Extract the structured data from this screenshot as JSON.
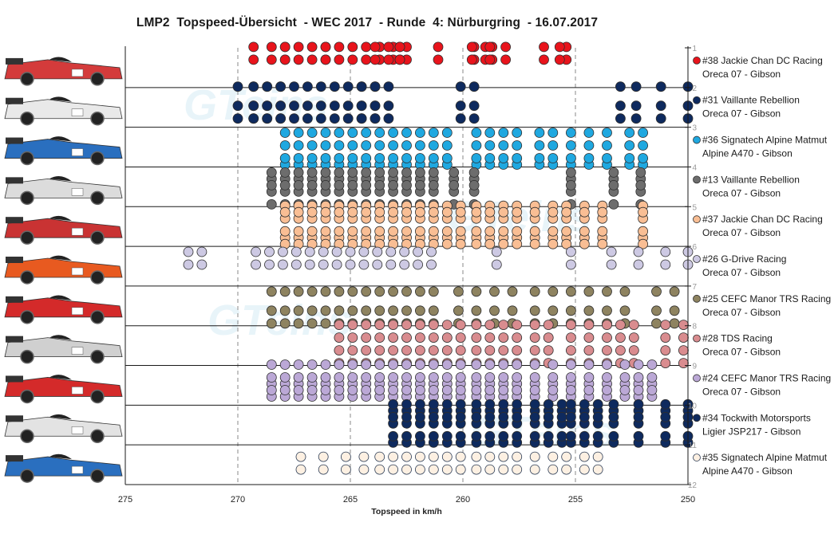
{
  "chart_data": {
    "type": "scatter",
    "title": "LMP2  Topspeed-Übersicht  - WEC 2017  - Runde  4: Nürburgring  - 16.07.2017",
    "xlabel": "Topspeed in km/h",
    "ylabel": "",
    "xlim": [
      275,
      250
    ],
    "x_reversed": true,
    "ylim": [
      1,
      12
    ],
    "x_ticks": [
      "275",
      "270",
      "265",
      "260",
      "255",
      "250"
    ],
    "y_ticks": [
      "1",
      "2",
      "3",
      "4",
      "5",
      "6",
      "7",
      "8",
      "9",
      "10",
      "11",
      "12"
    ],
    "grid": "vertical dashed",
    "legend_position": "right",
    "watermark": "GTeins",
    "series": [
      {
        "name": "#38 Jackie Chan DC Racing",
        "chassis": "Oreca 07 - Gibson",
        "color": "#e8141c",
        "x": [
          267.9,
          267.3,
          266.7,
          266.1,
          265.5,
          264.9,
          264.3,
          263.7,
          263.1,
          262.5,
          269.3,
          268.5,
          258.7,
          258.1,
          256.4,
          255.4,
          255.7,
          259.0,
          259.5,
          259.6,
          258.8,
          261.1,
          262.8,
          262.8,
          263.3,
          263.9,
          266.1,
          267.9
        ]
      },
      {
        "name": "#31 Vaillante Rebellion",
        "chassis": "Oreca 07 - Gibson",
        "color": "#0e2a5e",
        "x": [
          270.0,
          269.3,
          268.7,
          268.1,
          267.5,
          266.9,
          266.3,
          265.7,
          265.1,
          264.5,
          263.9,
          263.3,
          259.5,
          260.1,
          252.3,
          251.2,
          253.0,
          250.0,
          269.3,
          268.7,
          268.1,
          264.5,
          263.9
        ]
      },
      {
        "name": "#36 Signatech Alpine Matmut",
        "chassis": "Alpine A470 - Gibson",
        "color": "#1fa8e0",
        "x": [
          267.9,
          267.3,
          266.7,
          266.1,
          265.5,
          264.9,
          264.3,
          263.7,
          263.1,
          262.5,
          261.9,
          261.3,
          260.7,
          259.4,
          258.8,
          258.2,
          257.6,
          256.6,
          256.0,
          255.2,
          254.4,
          253.6,
          252.6,
          252.0
        ]
      },
      {
        "name": "#13 Vaillante Rebellion",
        "chassis": "Oreca 07 - Gibson",
        "color": "#6d6d6d",
        "x": [
          268.5,
          267.9,
          267.3,
          266.7,
          266.1,
          265.5,
          264.9,
          264.3,
          263.7,
          263.1,
          262.5,
          261.9,
          261.3,
          260.4,
          259.5,
          255.2,
          253.3,
          252.1
        ]
      },
      {
        "name": "#37 Jackie Chan DC Racing",
        "chassis": "Oreca 07 - Gibson",
        "color": "#f9be94",
        "x": [
          267.9,
          267.3,
          266.7,
          266.1,
          265.5,
          264.9,
          264.3,
          263.7,
          263.1,
          262.5,
          261.9,
          261.3,
          260.7,
          260.1,
          259.4,
          258.8,
          258.2,
          257.6,
          256.8,
          256.0,
          255.4,
          254.6,
          253.8,
          252.0
        ]
      },
      {
        "name": "#26 G-Drive Racing",
        "chassis": "Oreca 07 - Gibson",
        "color": "#cdc9e3",
        "x": [
          272.2,
          271.6,
          269.2,
          268.6,
          268.0,
          267.4,
          266.8,
          266.2,
          265.6,
          265.0,
          264.4,
          263.8,
          263.2,
          262.6,
          262.0,
          261.4,
          258.5,
          255.2,
          253.4,
          252.2,
          251.0,
          250.0
        ]
      },
      {
        "name": "#25 CEFC Manor TRS Racing",
        "chassis": "Oreca 07 - Gibson",
        "color": "#8e8360",
        "x": [
          268.5,
          267.9,
          267.3,
          266.7,
          266.1,
          265.5,
          264.9,
          264.3,
          263.7,
          263.1,
          262.5,
          261.9,
          261.3,
          260.2,
          259.4,
          258.6,
          257.8,
          256.8,
          256.0,
          255.2,
          254.4,
          253.6,
          252.8,
          251.4,
          250.6
        ]
      },
      {
        "name": "#28 TDS Racing",
        "chassis": "Oreca 07 - Gibson",
        "color": "#d98c8f",
        "x": [
          265.5,
          264.9,
          264.3,
          263.7,
          263.1,
          262.5,
          261.9,
          261.3,
          260.7,
          260.1,
          259.4,
          258.8,
          258.2,
          257.6,
          256.8,
          256.2,
          255.2,
          254.4,
          253.6,
          253.0,
          252.4,
          251.0,
          250.2
        ]
      },
      {
        "name": "#24 CEFC Manor TRS Racing",
        "chassis": "Oreca 07 - Gibson",
        "color": "#bba8d6",
        "x": [
          268.5,
          267.9,
          267.3,
          266.7,
          266.1,
          265.5,
          264.9,
          264.3,
          263.7,
          263.1,
          262.5,
          261.9,
          261.3,
          260.7,
          260.1,
          259.4,
          258.8,
          258.2,
          257.6,
          256.8,
          256.0,
          255.2,
          254.4,
          253.6,
          252.8,
          252.2,
          251.6
        ]
      },
      {
        "name": "#34 Tockwith Motorsports",
        "chassis": "Ligier JSP217 - Gibson",
        "color": "#0e2a5e",
        "x": [
          263.1,
          262.5,
          261.9,
          261.3,
          260.7,
          260.1,
          259.4,
          258.8,
          258.2,
          257.6,
          256.8,
          256.2,
          255.6,
          255.2,
          254.6,
          254.0,
          253.3,
          252.2,
          251.0,
          250.0
        ]
      },
      {
        "name": "#35 Signatech Alpine Matmut",
        "chassis": "Alpine A470 - Gibson",
        "color": "#fdf0e2",
        "x": [
          267.2,
          266.2,
          265.2,
          264.4,
          263.7,
          263.1,
          262.5,
          261.9,
          261.3,
          260.7,
          260.1,
          259.4,
          258.8,
          258.2,
          257.6,
          256.8,
          256.0,
          255.4,
          254.6,
          254.0
        ]
      }
    ]
  }
}
